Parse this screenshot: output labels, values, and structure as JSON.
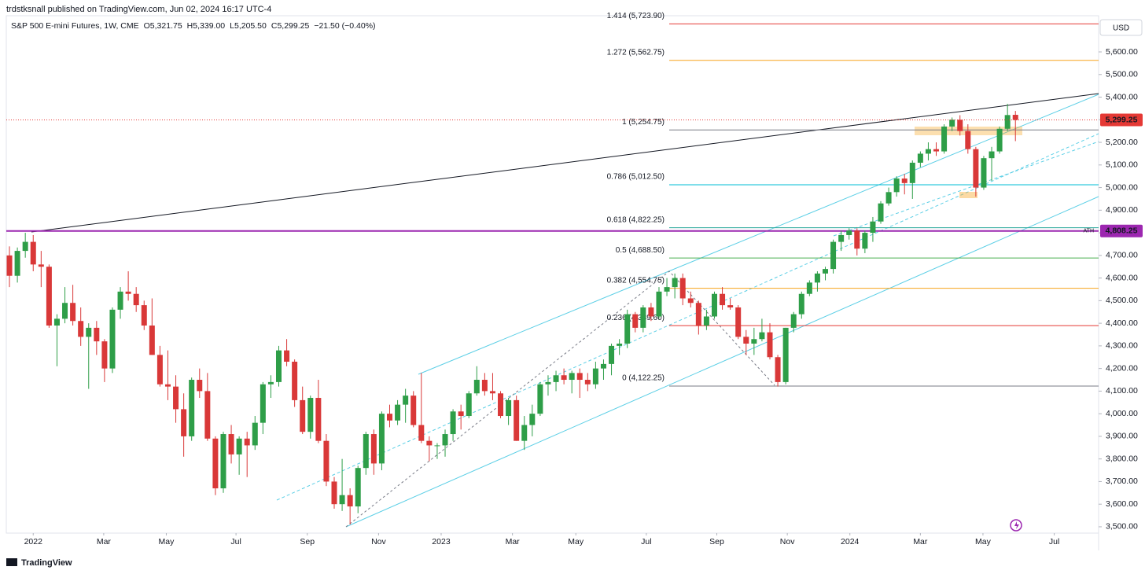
{
  "header": {
    "text": "trdstksnall published on TradingView.com, Jun 02, 2024 16:17 UTC-4"
  },
  "footer": {
    "brand": "TradingView"
  },
  "chart_data": {
    "type": "candlestick",
    "legend": {
      "symbol": "S&P 500 E-mini Futures, 1W, CME",
      "open": "O5,321.75",
      "high": "H5,339.00",
      "low": "L5,205.50",
      "close": "C5,299.25",
      "change": "−21.50 (−0.40%)"
    },
    "currency": "USD",
    "up_color": "#2e9e48",
    "down_color": "#d93838",
    "grid": false,
    "ylim": [
      3472,
      5760
    ],
    "xlim": [
      -0.4,
      137.5
    ],
    "yticks": [
      {
        "value": 3500,
        "label": "3,500.00"
      },
      {
        "value": 3600,
        "label": "3,600.00"
      },
      {
        "value": 3700,
        "label": "3,700.00"
      },
      {
        "value": 3800,
        "label": "3,800.00"
      },
      {
        "value": 3900,
        "label": "3,900.00"
      },
      {
        "value": 4000,
        "label": "4,000.00"
      },
      {
        "value": 4100,
        "label": "4,100.00"
      },
      {
        "value": 4200,
        "label": "4,200.00"
      },
      {
        "value": 4300,
        "label": "4,300.00"
      },
      {
        "value": 4400,
        "label": "4,400.00"
      },
      {
        "value": 4500,
        "label": "4,500.00"
      },
      {
        "value": 4600,
        "label": "4,600.00"
      },
      {
        "value": 4700,
        "label": "4,700.00"
      },
      {
        "value": 4800,
        "label": "4,800.00"
      },
      {
        "value": 4900,
        "label": "4,900.00"
      },
      {
        "value": 5000,
        "label": "5,000.00"
      },
      {
        "value": 5100,
        "label": "5,100.00"
      },
      {
        "value": 5200,
        "label": "5,200.00"
      },
      {
        "value": 5300,
        "label": "5,300.00"
      },
      {
        "value": 5400,
        "label": "5,400.00"
      },
      {
        "value": 5500,
        "label": "5,500.00"
      },
      {
        "value": 5600,
        "label": "5,600.00"
      }
    ],
    "xticks": [
      {
        "value": 3.0,
        "label": "2022"
      },
      {
        "value": 11.9,
        "label": "Mar"
      },
      {
        "value": 19.8,
        "label": "May"
      },
      {
        "value": 28.6,
        "label": "Jul"
      },
      {
        "value": 37.6,
        "label": "Sep"
      },
      {
        "value": 46.6,
        "label": "Nov"
      },
      {
        "value": 54.5,
        "label": "2023"
      },
      {
        "value": 63.5,
        "label": "Mar"
      },
      {
        "value": 71.5,
        "label": "May"
      },
      {
        "value": 80.4,
        "label": "Jul"
      },
      {
        "value": 89.3,
        "label": "Sep"
      },
      {
        "value": 98.2,
        "label": "Nov"
      },
      {
        "value": 106.1,
        "label": "2024"
      },
      {
        "value": 115.0,
        "label": "Mar"
      },
      {
        "value": 122.9,
        "label": "May"
      },
      {
        "value": 131.9,
        "label": "Jul"
      }
    ],
    "candles": [
      [
        4700,
        4740,
        4560,
        4610
      ],
      [
        4610,
        4735,
        4580,
        4720
      ],
      [
        4720,
        4800,
        4690,
        4760
      ],
      [
        4760,
        4790,
        4630,
        4660
      ],
      [
        4660,
        4720,
        4560,
        4650
      ],
      [
        4650,
        4660,
        4380,
        4390
      ],
      [
        4390,
        4440,
        4210,
        4420
      ],
      [
        4420,
        4560,
        4400,
        4490
      ],
      [
        4490,
        4570,
        4390,
        4410
      ],
      [
        4410,
        4470,
        4300,
        4340
      ],
      [
        4340,
        4400,
        4110,
        4380
      ],
      [
        4380,
        4410,
        4260,
        4320
      ],
      [
        4320,
        4330,
        4140,
        4200
      ],
      [
        4200,
        4470,
        4180,
        4460
      ],
      [
        4460,
        4560,
        4420,
        4540
      ],
      [
        4540,
        4630,
        4500,
        4530
      ],
      [
        4530,
        4560,
        4450,
        4480
      ],
      [
        4480,
        4500,
        4370,
        4390
      ],
      [
        4390,
        4510,
        4260,
        4260
      ],
      [
        4260,
        4300,
        4120,
        4130
      ],
      [
        4130,
        4280,
        4060,
        4120
      ],
      [
        4120,
        4170,
        3960,
        4020
      ],
      [
        4020,
        4090,
        3810,
        3900
      ],
      [
        3900,
        4160,
        3880,
        4150
      ],
      [
        4150,
        4200,
        4070,
        4100
      ],
      [
        4100,
        4180,
        3880,
        3890
      ],
      [
        3890,
        3900,
        3640,
        3670
      ],
      [
        3670,
        3920,
        3650,
        3910
      ],
      [
        3910,
        3950,
        3780,
        3820
      ],
      [
        3820,
        3900,
        3730,
        3890
      ],
      [
        3890,
        3920,
        3720,
        3860
      ],
      [
        3860,
        3990,
        3840,
        3960
      ],
      [
        3960,
        4140,
        3910,
        4130
      ],
      [
        4130,
        4170,
        4070,
        4140
      ],
      [
        4140,
        4300,
        4120,
        4280
      ],
      [
        4280,
        4330,
        4210,
        4230
      ],
      [
        4230,
        4240,
        4030,
        4060
      ],
      [
        4060,
        4120,
        3910,
        3920
      ],
      [
        3920,
        4080,
        3890,
        4070
      ],
      [
        4070,
        4150,
        3870,
        3880
      ],
      [
        3880,
        3910,
        3680,
        3700
      ],
      [
        3700,
        3720,
        3580,
        3600
      ],
      [
        3600,
        3800,
        3570,
        3640
      ],
      [
        3640,
        3670,
        3510,
        3590
      ],
      [
        3590,
        3770,
        3560,
        3760
      ],
      [
        3760,
        3920,
        3730,
        3910
      ],
      [
        3910,
        3930,
        3730,
        3780
      ],
      [
        3780,
        4010,
        3750,
        4000
      ],
      [
        4000,
        4040,
        3940,
        3970
      ],
      [
        3970,
        4060,
        3950,
        4040
      ],
      [
        4040,
        4110,
        3960,
        4080
      ],
      [
        4080,
        4100,
        3940,
        3950
      ],
      [
        3950,
        4180,
        3870,
        3880
      ],
      [
        3880,
        3900,
        3790,
        3860
      ],
      [
        3860,
        3870,
        3800,
        3860
      ],
      [
        3860,
        3930,
        3810,
        3910
      ],
      [
        3910,
        4020,
        3880,
        4010
      ],
      [
        4010,
        4040,
        3930,
        3990
      ],
      [
        3990,
        4100,
        3980,
        4090
      ],
      [
        4090,
        4210,
        4080,
        4150
      ],
      [
        4150,
        4180,
        4080,
        4100
      ],
      [
        4100,
        4180,
        4060,
        4090
      ],
      [
        4090,
        4100,
        3980,
        3990
      ],
      [
        3990,
        4070,
        3950,
        4060
      ],
      [
        4060,
        4080,
        3880,
        3880
      ],
      [
        3880,
        3990,
        3840,
        3950
      ],
      [
        3950,
        4040,
        3900,
        4000
      ],
      [
        4000,
        4140,
        3990,
        4130
      ],
      [
        4130,
        4170,
        4080,
        4140
      ],
      [
        4140,
        4190,
        4100,
        4170
      ],
      [
        4170,
        4200,
        4130,
        4150
      ],
      [
        4150,
        4190,
        4090,
        4180
      ],
      [
        4180,
        4200,
        4070,
        4150
      ],
      [
        4150,
        4180,
        4100,
        4130
      ],
      [
        4130,
        4230,
        4110,
        4200
      ],
      [
        4200,
        4240,
        4150,
        4220
      ],
      [
        4220,
        4310,
        4170,
        4300
      ],
      [
        4300,
        4330,
        4260,
        4310
      ],
      [
        4310,
        4460,
        4290,
        4440
      ],
      [
        4440,
        4450,
        4360,
        4380
      ],
      [
        4380,
        4480,
        4360,
        4470
      ],
      [
        4470,
        4490,
        4410,
        4430
      ],
      [
        4430,
        4560,
        4420,
        4540
      ],
      [
        4540,
        4600,
        4520,
        4560
      ],
      [
        4560,
        4620,
        4510,
        4600
      ],
      [
        4600,
        4620,
        4480,
        4510
      ],
      [
        4510,
        4540,
        4470,
        4490
      ],
      [
        4490,
        4500,
        4350,
        4390
      ],
      [
        4390,
        4460,
        4370,
        4430
      ],
      [
        4430,
        4540,
        4420,
        4530
      ],
      [
        4530,
        4560,
        4460,
        4480
      ],
      [
        4480,
        4510,
        4460,
        4470
      ],
      [
        4470,
        4480,
        4330,
        4340
      ],
      [
        4340,
        4370,
        4260,
        4310
      ],
      [
        4310,
        4380,
        4260,
        4330
      ],
      [
        4330,
        4420,
        4320,
        4360
      ],
      [
        4360,
        4400,
        4240,
        4250
      ],
      [
        4250,
        4260,
        4120,
        4140
      ],
      [
        4140,
        4380,
        4130,
        4380
      ],
      [
        4380,
        4450,
        4360,
        4440
      ],
      [
        4440,
        4540,
        4420,
        4530
      ],
      [
        4530,
        4590,
        4520,
        4580
      ],
      [
        4580,
        4630,
        4540,
        4620
      ],
      [
        4620,
        4650,
        4590,
        4640
      ],
      [
        4640,
        4770,
        4620,
        4760
      ],
      [
        4760,
        4810,
        4720,
        4790
      ],
      [
        4790,
        4820,
        4770,
        4810
      ],
      [
        4810,
        4820,
        4700,
        4730
      ],
      [
        4730,
        4810,
        4710,
        4800
      ],
      [
        4800,
        4870,
        4760,
        4850
      ],
      [
        4850,
        4940,
        4840,
        4930
      ],
      [
        4930,
        5000,
        4920,
        4980
      ],
      [
        4980,
        5050,
        4960,
        5040
      ],
      [
        5040,
        5060,
        4970,
        5020
      ],
      [
        5020,
        5120,
        4950,
        5110
      ],
      [
        5110,
        5160,
        5090,
        5150
      ],
      [
        5150,
        5200,
        5120,
        5170
      ],
      [
        5170,
        5200,
        5140,
        5160
      ],
      [
        5160,
        5280,
        5150,
        5270
      ],
      [
        5270,
        5310,
        5250,
        5300
      ],
      [
        5300,
        5320,
        5230,
        5250
      ],
      [
        5250,
        5280,
        5150,
        5170
      ],
      [
        5170,
        5180,
        4960,
        5000
      ],
      [
        5000,
        5140,
        4990,
        5130
      ],
      [
        5130,
        5180,
        5030,
        5160
      ],
      [
        5160,
        5270,
        5150,
        5260
      ],
      [
        5260,
        5370,
        5250,
        5320.75
      ],
      [
        5321.75,
        5339,
        5205.5,
        5299.25
      ]
    ],
    "fib_levels": [
      {
        "label": "1.414 (5,723.90)",
        "value": 5723.9,
        "color": "#e53935"
      },
      {
        "label": "1.272 (5,562.75)",
        "value": 5562.75,
        "color": "#f7a21b"
      },
      {
        "label": "1 (5,254.75)",
        "value": 5254.75,
        "color": "#787b86"
      },
      {
        "label": "0.786 (5,012.50)",
        "value": 5012.5,
        "color": "#00bcd4"
      },
      {
        "label": "0.618 (4,822.25)",
        "value": 4822.25,
        "color": "#26a69a"
      },
      {
        "label": "0.5 (4,688.50)",
        "value": 4688.5,
        "color": "#4caf50"
      },
      {
        "label": "0.382 (4,554.75)",
        "value": 4554.75,
        "color": "#f7a21b"
      },
      {
        "label": "0.236 (4,389.60)",
        "value": 4389.6,
        "color": "#e53935"
      },
      {
        "label": "0 (4,122.25)",
        "value": 4122.25,
        "color": "#787b86"
      }
    ],
    "ath": {
      "label": "ATH",
      "value": 4808.25,
      "value_label": "4,808.25",
      "color": "#9c27b0"
    },
    "last_price": {
      "value": 5299.25,
      "value_label": "5,299.25",
      "color": "#e53935"
    }
  }
}
